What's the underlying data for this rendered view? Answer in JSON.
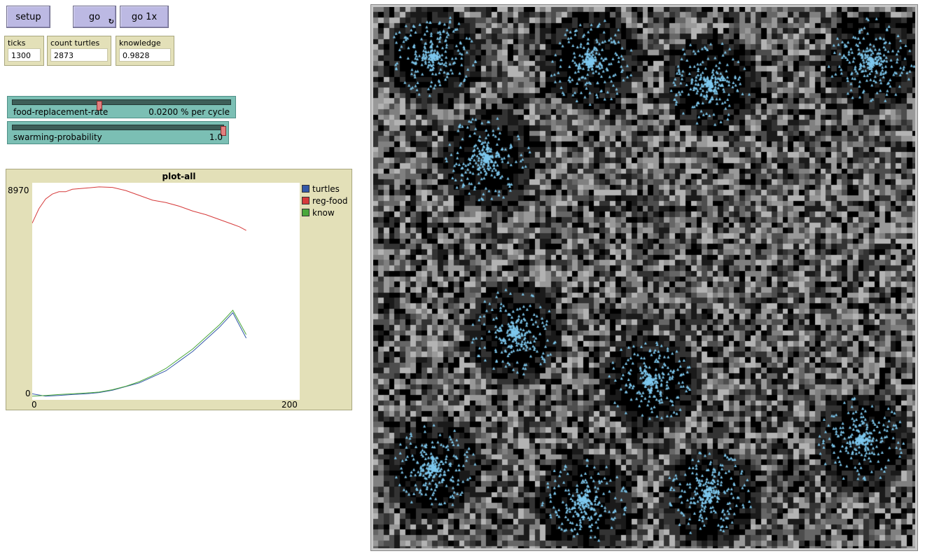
{
  "buttons": {
    "setup": "setup",
    "go": "go",
    "go_once": "go 1x",
    "forever_glyph": "↻"
  },
  "monitors": {
    "ticks": {
      "label": "ticks",
      "value": "1300"
    },
    "count_turtles": {
      "label": "count turtles",
      "value": "2873"
    },
    "knowledge": {
      "label": "knowledge",
      "value": "0.9828"
    }
  },
  "sliders": {
    "food_replacement_rate": {
      "label": "food-replacement-rate",
      "value": "0.0200 % per cycle",
      "fraction": 0.4
    },
    "swarming_probability": {
      "label": "swarming-probability",
      "value": "1.0",
      "fraction": 1.0
    }
  },
  "plot": {
    "title": "plot-all",
    "y_max_label": "8970",
    "y_min_label": "0",
    "x_min_label": "0",
    "x_max_label": "200"
  },
  "chart_data": {
    "type": "line",
    "title": "plot-all",
    "xlim": [
      0,
      200
    ],
    "ylim": [
      0,
      8970
    ],
    "legend": "right",
    "series": [
      {
        "name": "turtles",
        "color": "#3358a8",
        "x": [
          0,
          10,
          20,
          30,
          40,
          50,
          60,
          70,
          80,
          90,
          100,
          110,
          120,
          130,
          140,
          150,
          160
        ],
        "y": [
          250,
          150,
          180,
          220,
          250,
          300,
          400,
          550,
          700,
          950,
          1200,
          1600,
          2000,
          2500,
          3000,
          3600,
          2550
        ]
      },
      {
        "name": "reg-food",
        "color": "#d63a3a",
        "x": [
          0,
          5,
          10,
          15,
          20,
          25,
          30,
          40,
          50,
          60,
          70,
          80,
          90,
          100,
          110,
          120,
          130,
          140,
          150,
          155,
          160
        ],
        "y": [
          7300,
          7900,
          8300,
          8500,
          8600,
          8600,
          8700,
          8750,
          8800,
          8780,
          8650,
          8450,
          8250,
          8150,
          8000,
          7800,
          7650,
          7450,
          7250,
          7150,
          7000
        ]
      },
      {
        "name": "know",
        "color": "#4aa83a",
        "x": [
          0,
          10,
          20,
          30,
          40,
          50,
          60,
          70,
          80,
          90,
          100,
          110,
          120,
          130,
          140,
          150,
          160
        ],
        "y": [
          150,
          180,
          220,
          250,
          280,
          320,
          420,
          560,
          750,
          1000,
          1300,
          1700,
          2100,
          2600,
          3100,
          3700,
          2700
        ]
      }
    ]
  },
  "world": {
    "patch_colors": [
      "#000000",
      "#1a1a1a",
      "#333333",
      "#4d4d4d",
      "#666666",
      "#808080",
      "#999999",
      "#b3b3b3"
    ],
    "turtle_color": "#7ec8ee"
  }
}
